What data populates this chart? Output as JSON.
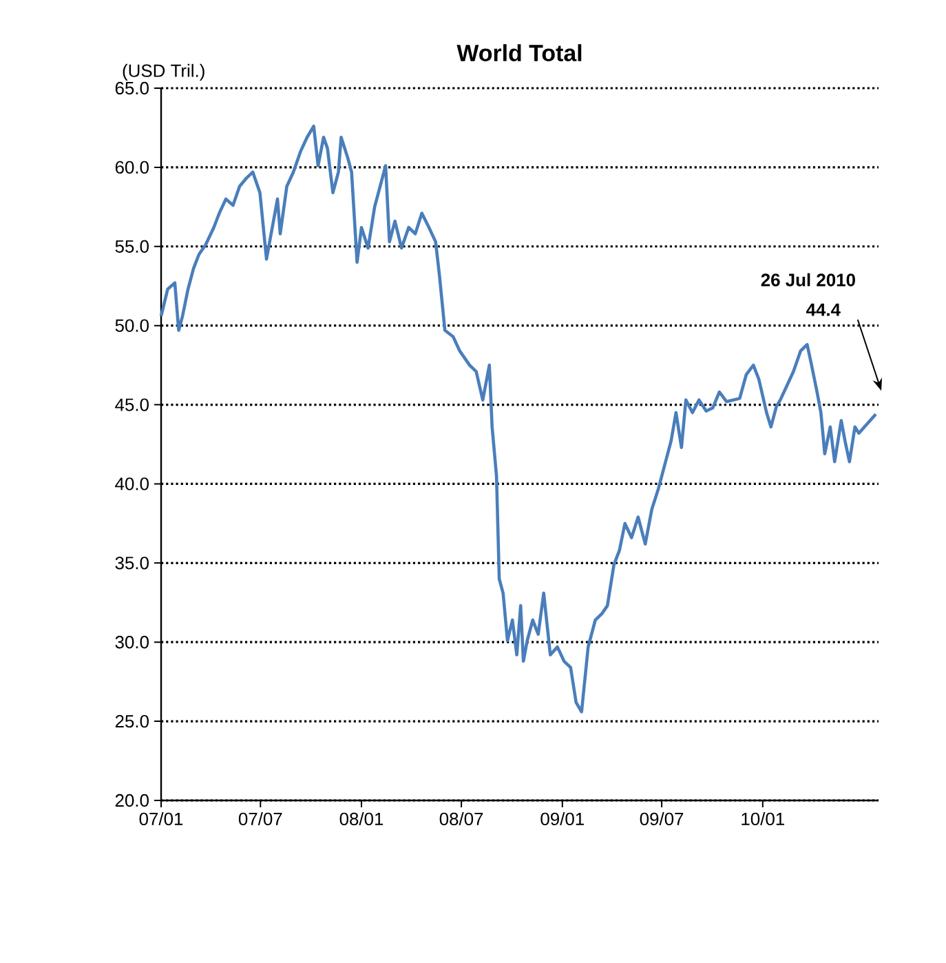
{
  "chart_data": {
    "type": "line",
    "title": "World Total",
    "ylabel": "(USD Tril.)",
    "x": [
      "2007-01-01",
      "2007-01-13",
      "2007-01-26",
      "2007-02-02",
      "2007-02-09",
      "2007-02-19",
      "2007-03-01",
      "2007-03-11",
      "2007-03-23",
      "2007-04-07",
      "2007-04-17",
      "2007-04-29",
      "2007-05-12",
      "2007-05-24",
      "2007-06-05",
      "2007-06-17",
      "2007-06-30",
      "2007-07-12",
      "2007-08-01",
      "2007-08-06",
      "2007-08-18",
      "2007-08-30",
      "2007-09-12",
      "2007-09-24",
      "2007-10-06",
      "2007-10-14",
      "2007-10-24",
      "2007-10-31",
      "2007-11-10",
      "2007-11-20",
      "2007-11-25",
      "2007-12-07",
      "2007-12-14",
      "2007-12-24",
      "2008-01-01",
      "2008-01-13",
      "2008-01-25",
      "2008-02-14",
      "2008-02-21",
      "2008-03-02",
      "2008-03-14",
      "2008-03-27",
      "2008-04-08",
      "2008-04-20",
      "2008-05-03",
      "2008-05-15",
      "2008-05-22",
      "2008-06-01",
      "2008-06-16",
      "2008-06-28",
      "2008-07-16",
      "2008-07-28",
      "2008-08-09",
      "2008-08-21",
      "2008-08-26",
      "2008-09-03",
      "2008-09-08",
      "2008-09-15",
      "2008-09-23",
      "2008-10-02",
      "2008-10-10",
      "2008-10-17",
      "2008-10-22",
      "2008-10-29",
      "2008-11-08",
      "2008-11-18",
      "2008-11-28",
      "2008-12-10",
      "2008-12-23",
      "2009-01-04",
      "2009-01-16",
      "2009-01-26",
      "2009-02-05",
      "2009-02-17",
      "2009-03-02",
      "2009-03-14",
      "2009-03-24",
      "2009-04-05",
      "2009-04-15",
      "2009-04-25",
      "2009-05-07",
      "2009-05-19",
      "2009-06-01",
      "2009-06-13",
      "2009-06-25",
      "2009-07-08",
      "2009-07-18",
      "2009-07-27",
      "2009-08-06",
      "2009-08-14",
      "2009-08-26",
      "2009-09-07",
      "2009-09-20",
      "2009-10-02",
      "2009-10-14",
      "2009-10-27",
      "2009-11-08",
      "2009-11-20",
      "2009-12-02",
      "2009-12-15",
      "2009-12-25",
      "2010-01-08",
      "2010-01-16",
      "2010-01-26",
      "2010-02-02",
      "2010-02-14",
      "2010-02-26",
      "2010-03-11",
      "2010-03-23",
      "2010-03-31",
      "2010-04-10",
      "2010-04-17",
      "2010-04-24",
      "2010-05-04",
      "2010-05-12",
      "2010-05-24",
      "2010-05-31",
      "2010-06-08",
      "2010-06-18",
      "2010-06-25",
      "2010-07-26"
    ],
    "series": [
      {
        "color": "#4a7ebb",
        "values": [
          50.6,
          52.3,
          52.7,
          49.7,
          50.6,
          52.3,
          53.6,
          54.5,
          55.1,
          56.2,
          57.1,
          58.0,
          57.6,
          58.8,
          59.3,
          59.7,
          58.4,
          54.2,
          58.0,
          55.8,
          58.8,
          59.7,
          61.0,
          61.9,
          62.6,
          60.1,
          61.9,
          61.2,
          58.4,
          59.7,
          61.9,
          60.6,
          59.7,
          54.0,
          56.2,
          54.9,
          57.5,
          60.1,
          55.3,
          56.6,
          54.9,
          56.2,
          55.8,
          57.1,
          56.2,
          55.3,
          53.2,
          49.7,
          49.3,
          48.4,
          47.5,
          47.1,
          45.3,
          47.5,
          43.6,
          40.5,
          34.0,
          33.1,
          30.1,
          31.4,
          29.2,
          32.3,
          28.8,
          30.1,
          31.4,
          30.5,
          33.1,
          29.2,
          29.7,
          28.8,
          28.4,
          26.2,
          25.6,
          29.7,
          31.4,
          31.8,
          32.3,
          34.9,
          35.8,
          37.5,
          36.6,
          37.9,
          36.2,
          38.4,
          39.7,
          41.4,
          42.7,
          44.5,
          42.3,
          45.3,
          44.5,
          45.3,
          44.6,
          44.8,
          45.8,
          45.2,
          45.3,
          45.4,
          46.9,
          47.5,
          46.6,
          44.5,
          43.6,
          44.9,
          45.3,
          46.2,
          47.1,
          48.4,
          48.8,
          47.5,
          45.8,
          44.5,
          41.9,
          43.6,
          41.4,
          44.0,
          42.7,
          41.4,
          43.6,
          43.2,
          44.4
        ]
      }
    ],
    "xlim": [
      "2007-01-01",
      "2010-07-31"
    ],
    "xticks": [
      {
        "value": "2007-01",
        "label": "07/01"
      },
      {
        "value": "2007-07",
        "label": "07/07"
      },
      {
        "value": "2008-01",
        "label": "08/01"
      },
      {
        "value": "2008-07",
        "label": "08/07"
      },
      {
        "value": "2009-01",
        "label": "09/01"
      },
      {
        "value": "2009-07",
        "label": "09/07"
      },
      {
        "value": "2010-01",
        "label": "10/01"
      }
    ],
    "ylim": [
      20,
      65
    ],
    "yticks": [
      {
        "value": 20,
        "label": "20.0"
      },
      {
        "value": 25,
        "label": "25.0"
      },
      {
        "value": 30,
        "label": "30.0"
      },
      {
        "value": 35,
        "label": "35.0"
      },
      {
        "value": 40,
        "label": "40.0"
      },
      {
        "value": 45,
        "label": "45.0"
      },
      {
        "value": 50,
        "label": "50.0"
      },
      {
        "value": 55,
        "label": "55.0"
      },
      {
        "value": 60,
        "label": "60.0"
      },
      {
        "value": 65,
        "label": "65.0"
      }
    ],
    "grid": "y",
    "annotations": [
      "26 Jul 2010",
      "44.4"
    ]
  }
}
